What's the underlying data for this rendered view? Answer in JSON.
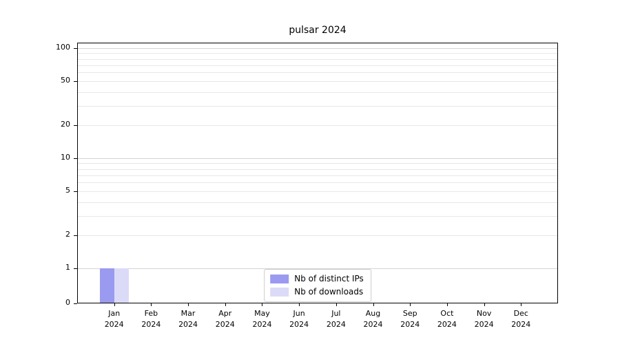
{
  "chart_data": {
    "type": "bar",
    "title": "pulsar 2024",
    "categories": [
      {
        "month": "Jan",
        "year": "2024"
      },
      {
        "month": "Feb",
        "year": "2024"
      },
      {
        "month": "Mar",
        "year": "2024"
      },
      {
        "month": "Apr",
        "year": "2024"
      },
      {
        "month": "May",
        "year": "2024"
      },
      {
        "month": "Jun",
        "year": "2024"
      },
      {
        "month": "Jul",
        "year": "2024"
      },
      {
        "month": "Aug",
        "year": "2024"
      },
      {
        "month": "Sep",
        "year": "2024"
      },
      {
        "month": "Oct",
        "year": "2024"
      },
      {
        "month": "Nov",
        "year": "2024"
      },
      {
        "month": "Dec",
        "year": "2024"
      }
    ],
    "series": [
      {
        "name": "Nb of distinct IPs",
        "color": "#9a9af0",
        "values": [
          1,
          0,
          0,
          0,
          0,
          0,
          0,
          0,
          0,
          0,
          0,
          0
        ]
      },
      {
        "name": "Nb of downloads",
        "color": "#dbdbf8",
        "values": [
          1,
          0,
          0,
          0,
          0,
          0,
          0,
          0,
          0,
          0,
          0,
          0
        ]
      }
    ],
    "yscale": "symlog",
    "ylim": [
      0,
      112
    ],
    "yticks": [
      0,
      1,
      2,
      5,
      10,
      20,
      50,
      100
    ],
    "grid": "horizontal",
    "legend_position": "lower center"
  }
}
